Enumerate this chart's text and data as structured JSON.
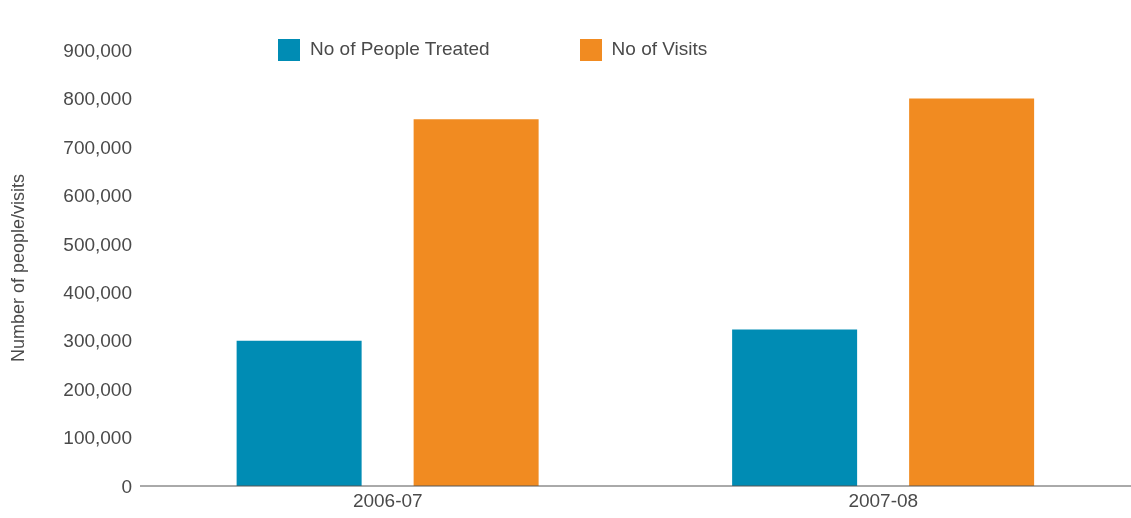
{
  "chart_data": {
    "type": "bar",
    "ylabel": "Number of people/visits",
    "categories": [
      "2006-07",
      "2007-08"
    ],
    "series": [
      {
        "name": "No of People Treated",
        "color": "#008cb4",
        "values": [
          300000,
          323000
        ]
      },
      {
        "name": "No of Visits",
        "color": "#f18b21",
        "values": [
          757000,
          800000
        ]
      }
    ],
    "ylim": [
      0,
      900000
    ],
    "yticks": [
      0,
      {
        "value": 100000,
        "label": "100,000"
      },
      {
        "value": 200000,
        "label": "200,000"
      },
      {
        "value": 300000,
        "label": "300,000"
      },
      {
        "value": 400000,
        "label": "400,000"
      },
      {
        "value": 500000,
        "label": "500,000"
      },
      {
        "value": 600000,
        "label": "600,000"
      },
      {
        "value": 700000,
        "label": "700,000"
      },
      {
        "value": 800000,
        "label": "800,000"
      },
      {
        "value": 900000,
        "label": "900,000"
      }
    ],
    "grid": false,
    "legend": "top"
  }
}
